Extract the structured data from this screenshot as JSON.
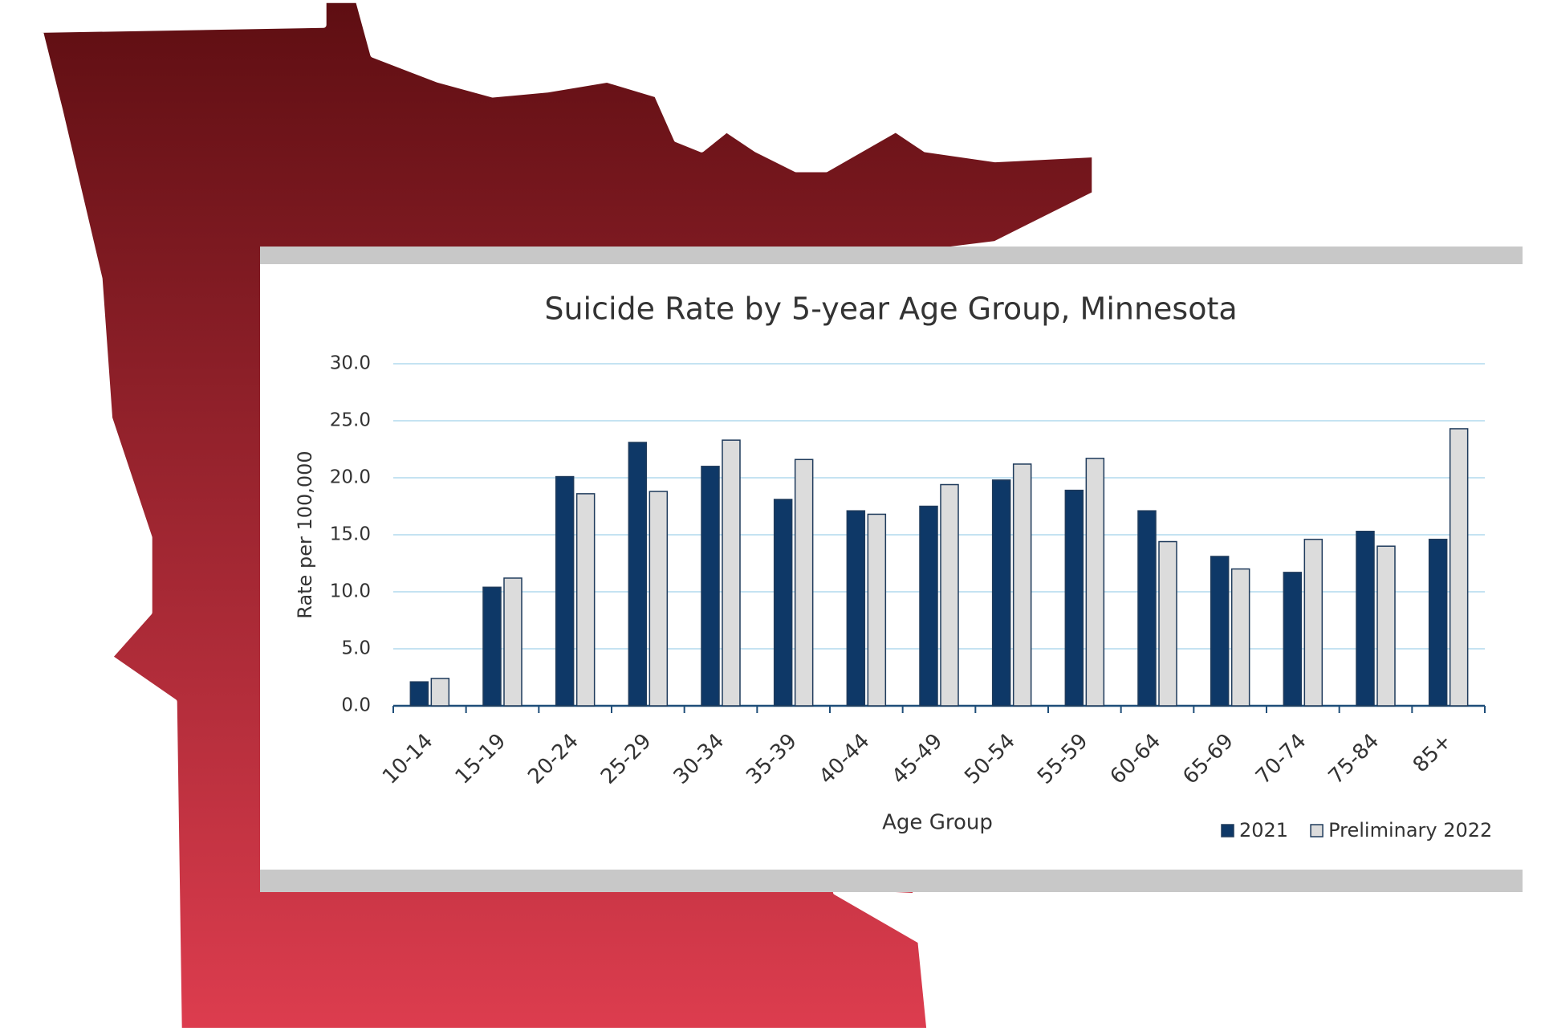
{
  "chart_data": {
    "type": "bar",
    "title": "Suicide Rate by 5-year Age Group, Minnesota",
    "x_label": "Age Group",
    "y_label": "Rate per 100,000",
    "categories": [
      "10-14",
      "15-19",
      "20-24",
      "25-29",
      "30-34",
      "35-39",
      "40-44",
      "45-49",
      "50-54",
      "55-59",
      "60-64",
      "65-69",
      "70-74",
      "75-84",
      "85+"
    ],
    "series": [
      {
        "name": "2021",
        "color": "#0e3867",
        "values": [
          2.1,
          10.4,
          20.1,
          23.1,
          21.0,
          18.1,
          17.1,
          17.5,
          19.8,
          18.9,
          17.1,
          13.1,
          11.7,
          15.3,
          14.6
        ]
      },
      {
        "name": "Preliminary 2022",
        "color": "#dcdcdc",
        "values": [
          2.4,
          11.2,
          18.6,
          18.8,
          23.3,
          21.6,
          16.8,
          19.4,
          21.2,
          21.7,
          14.4,
          12.0,
          14.6,
          14.0,
          24.3
        ]
      }
    ],
    "ylim": [
      0,
      30
    ],
    "yticks": [
      {
        "value": 0,
        "label": "0.0"
      },
      {
        "value": 5,
        "label": "5.0"
      },
      {
        "value": 10,
        "label": "10.0"
      },
      {
        "value": 15,
        "label": "15.0"
      },
      {
        "value": 20,
        "label": "20.0"
      },
      {
        "value": 25,
        "label": "25.0"
      },
      {
        "value": 30,
        "label": "30.0"
      }
    ],
    "grid": true,
    "legend": "bottom-right"
  }
}
